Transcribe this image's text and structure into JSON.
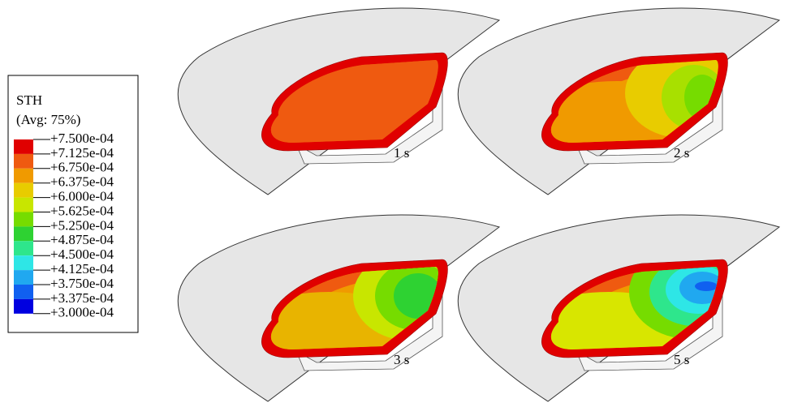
{
  "legend": {
    "title": "STH",
    "subtitle": "(Avg: 75%)",
    "levels": [
      "+7.500e-04",
      "+7.125e-04",
      "+6.750e-04",
      "+6.375e-04",
      "+6.000e-04",
      "+5.625e-04",
      "+5.250e-04",
      "+4.875e-04",
      "+4.500e-04",
      "+4.125e-04",
      "+3.750e-04",
      "+3.375e-04",
      "+3.000e-04"
    ],
    "colors": [
      "#e00000",
      "#ef5a10",
      "#f09a00",
      "#e8cc00",
      "#c8e600",
      "#76dc00",
      "#2ed232",
      "#2ee68c",
      "#2ee6e6",
      "#20a8f0",
      "#1060f0",
      "#0000e0"
    ]
  },
  "panels": [
    {
      "label": "1 s"
    },
    {
      "label": "2 s"
    },
    {
      "label": "3 s"
    },
    {
      "label": "5 s"
    }
  ]
}
